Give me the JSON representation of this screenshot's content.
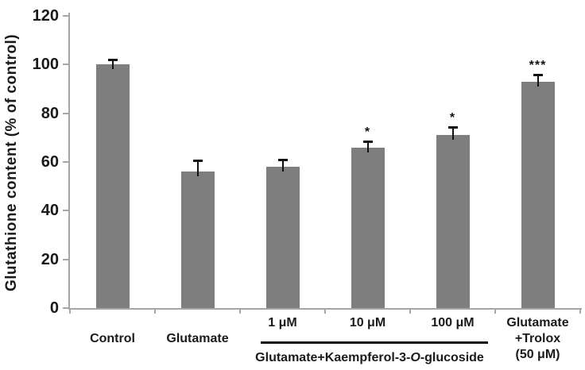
{
  "chart_data": {
    "type": "bar",
    "title": "",
    "xlabel": "",
    "ylabel": "Glutathione content (% of control)",
    "ylim": [
      0,
      120
    ],
    "yticks": [
      0,
      20,
      40,
      60,
      80,
      100,
      120
    ],
    "grid": false,
    "legend": null,
    "bar_color": "#7e7e7e",
    "axis_color": "#a6a6a6",
    "error_bar_color": "#111111",
    "categories": [
      "Control",
      "Glutamate",
      "1 μM",
      "10 μM",
      "100 μM",
      "Glutamate\n+Trolox\n(50 μM)"
    ],
    "values": [
      100,
      56,
      58,
      66,
      71,
      93
    ],
    "errors": [
      2,
      4.5,
      3,
      2.5,
      3.5,
      3
    ],
    "significance": [
      "",
      "",
      "",
      "*",
      "*",
      "***"
    ],
    "label_layout": {
      "upper_indices": [
        2,
        3,
        4
      ]
    },
    "group_annotation": {
      "prefix": "Glutamate+Kaempferol-3-",
      "italic": "O",
      "suffix": "-glucoside",
      "start_index": 2,
      "end_index": 4
    }
  }
}
